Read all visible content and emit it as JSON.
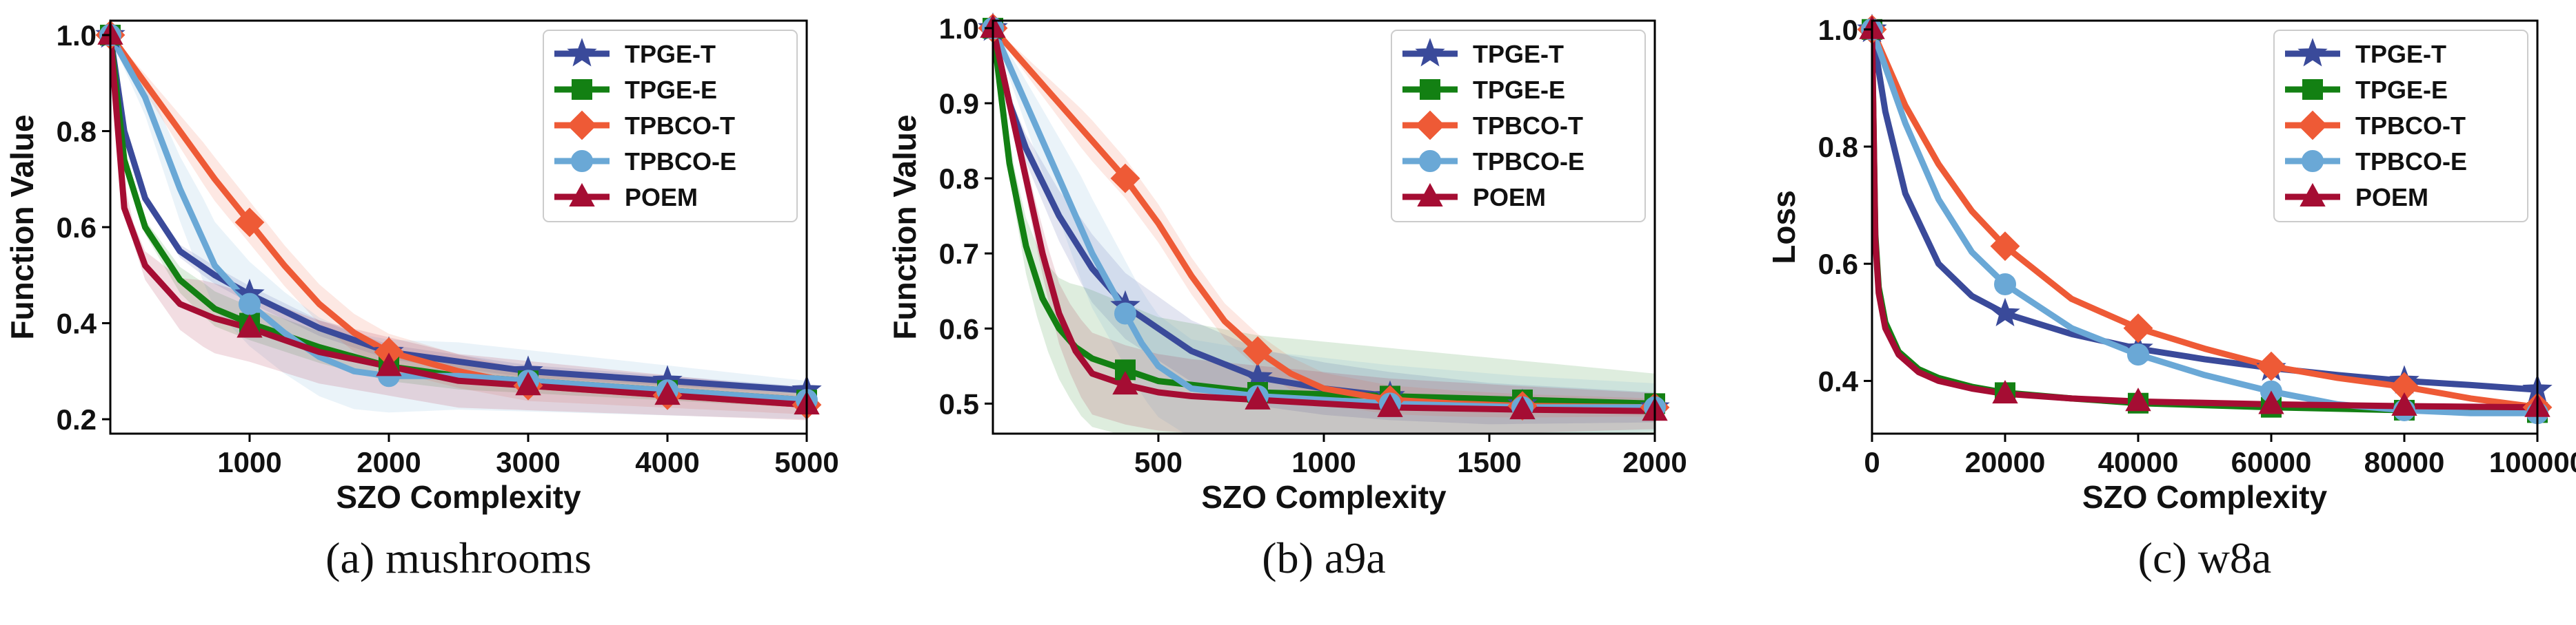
{
  "colors": {
    "TPGE-T": "#3a4a9a",
    "TPGE-E": "#138013",
    "TPBCO-T": "#ee5a36",
    "TPBCO-E": "#6aa8d6",
    "POEM": "#a50d33"
  },
  "markers": {
    "TPGE-T": "star",
    "TPGE-E": "square",
    "TPBCO-T": "diamond",
    "TPBCO-E": "circle",
    "POEM": "triangle"
  },
  "chart_data": [
    {
      "type": "line",
      "caption": "(a) mushrooms",
      "xlabel": "SZO Complexity",
      "ylabel": "Function Value",
      "xlim": [
        0,
        5000
      ],
      "ylim": [
        0.17,
        1.03
      ],
      "xticks": [
        1000,
        2000,
        3000,
        4000,
        5000
      ],
      "xtick_labels": [
        "1000",
        "2000",
        "3000",
        "4000",
        "5000"
      ],
      "yticks": [
        0.2,
        0.4,
        0.6,
        0.8,
        1.0
      ],
      "ytick_labels": [
        "0.2",
        "0.4",
        "0.6",
        "0.8",
        "1.0"
      ],
      "legend": [
        "TPGE-T",
        "TPGE-E",
        "TPBCO-T",
        "TPBCO-E",
        "POEM"
      ],
      "marker_x": [
        0,
        1000,
        2000,
        3000,
        4000,
        5000
      ],
      "series": [
        {
          "name": "TPGE-T",
          "x": [
            0,
            100,
            250,
            500,
            750,
            1000,
            1500,
            2000,
            2500,
            3000,
            3500,
            4000,
            4500,
            5000
          ],
          "y": [
            1.0,
            0.8,
            0.66,
            0.55,
            0.5,
            0.46,
            0.39,
            0.34,
            0.32,
            0.3,
            0.29,
            0.28,
            0.27,
            0.26
          ],
          "band": 0.02
        },
        {
          "name": "TPGE-E",
          "x": [
            0,
            100,
            250,
            500,
            750,
            1000,
            1500,
            2000,
            2500,
            3000,
            3500,
            4000,
            4500,
            5000
          ],
          "y": [
            1.0,
            0.74,
            0.6,
            0.49,
            0.43,
            0.4,
            0.35,
            0.31,
            0.29,
            0.28,
            0.27,
            0.26,
            0.25,
            0.24
          ],
          "band": 0.04
        },
        {
          "name": "TPBCO-T",
          "x": [
            0,
            250,
            500,
            750,
            1000,
            1250,
            1500,
            1750,
            2000,
            2500,
            3000,
            3500,
            4000,
            4500,
            5000
          ],
          "y": [
            1.0,
            0.9,
            0.8,
            0.7,
            0.61,
            0.52,
            0.44,
            0.38,
            0.34,
            0.3,
            0.27,
            0.26,
            0.25,
            0.24,
            0.23
          ],
          "band": 0.05
        },
        {
          "name": "TPBCO-E",
          "x": [
            0,
            250,
            500,
            750,
            1000,
            1250,
            1500,
            1750,
            2000,
            2500,
            3000,
            3500,
            4000,
            4500,
            5000
          ],
          "y": [
            1.0,
            0.87,
            0.68,
            0.52,
            0.44,
            0.38,
            0.33,
            0.3,
            0.29,
            0.29,
            0.28,
            0.27,
            0.26,
            0.25,
            0.24
          ],
          "band": 0.1
        },
        {
          "name": "POEM",
          "x": [
            0,
            100,
            250,
            500,
            750,
            1000,
            1500,
            2000,
            2500,
            3000,
            3500,
            4000,
            4500,
            5000
          ],
          "y": [
            1.0,
            0.64,
            0.52,
            0.44,
            0.41,
            0.39,
            0.34,
            0.31,
            0.28,
            0.27,
            0.26,
            0.25,
            0.24,
            0.23
          ],
          "band": 0.08
        }
      ]
    },
    {
      "type": "line",
      "caption": "(b) a9a",
      "xlabel": "SZO Complexity",
      "ylabel": "Function Value",
      "xlim": [
        0,
        2000
      ],
      "ylim": [
        0.46,
        1.01
      ],
      "xticks": [
        500,
        1000,
        1500,
        2000
      ],
      "xtick_labels": [
        "500",
        "1000",
        "1500",
        "2000"
      ],
      "yticks": [
        0.5,
        0.6,
        0.7,
        0.8,
        0.9,
        1.0
      ],
      "ytick_labels": [
        "0.5",
        "0.6",
        "0.7",
        "0.8",
        "0.9",
        "1.0"
      ],
      "legend": [
        "TPGE-T",
        "TPGE-E",
        "TPBCO-T",
        "TPBCO-E",
        "POEM"
      ],
      "marker_x": [
        0,
        400,
        800,
        1200,
        1600,
        2000
      ],
      "series": [
        {
          "name": "TPGE-T",
          "x": [
            0,
            50,
            100,
            200,
            300,
            400,
            500,
            600,
            800,
            1000,
            1200,
            1500,
            2000
          ],
          "y": [
            1.0,
            0.9,
            0.84,
            0.75,
            0.68,
            0.63,
            0.6,
            0.57,
            0.535,
            0.52,
            0.51,
            0.5,
            0.495
          ],
          "band": 0.05
        },
        {
          "name": "TPGE-E",
          "x": [
            0,
            50,
            100,
            150,
            200,
            250,
            300,
            400,
            500,
            800,
            1200,
            1600,
            2000
          ],
          "y": [
            1.0,
            0.82,
            0.71,
            0.64,
            0.6,
            0.575,
            0.56,
            0.545,
            0.53,
            0.515,
            0.51,
            0.505,
            0.5
          ],
          "band": 0.1
        },
        {
          "name": "TPBCO-T",
          "x": [
            0,
            100,
            200,
            300,
            400,
            500,
            600,
            700,
            800,
            900,
            1000,
            1200,
            1400,
            1600,
            2000
          ],
          "y": [
            1.0,
            0.95,
            0.9,
            0.85,
            0.8,
            0.74,
            0.67,
            0.61,
            0.57,
            0.54,
            0.52,
            0.505,
            0.5,
            0.497,
            0.495
          ],
          "band": 0.03
        },
        {
          "name": "TPBCO-E",
          "x": [
            0,
            100,
            200,
            300,
            400,
            450,
            500,
            600,
            800,
            1200,
            1600,
            2000
          ],
          "y": [
            1.0,
            0.9,
            0.8,
            0.7,
            0.62,
            0.58,
            0.55,
            0.52,
            0.51,
            0.5,
            0.495,
            0.495
          ],
          "band": 0.08
        },
        {
          "name": "POEM",
          "x": [
            0,
            50,
            100,
            150,
            200,
            250,
            300,
            400,
            500,
            600,
            800,
            1200,
            1600,
            2000
          ],
          "y": [
            1.0,
            0.9,
            0.8,
            0.7,
            0.62,
            0.57,
            0.54,
            0.525,
            0.515,
            0.51,
            0.505,
            0.495,
            0.492,
            0.49
          ],
          "band": 0.06
        }
      ]
    },
    {
      "type": "line",
      "caption": "(c) w8a",
      "xlabel": "SZO Complexity",
      "ylabel": "Loss",
      "xlim": [
        0,
        100000
      ],
      "ylim": [
        0.31,
        1.015
      ],
      "xticks": [
        0,
        20000,
        40000,
        60000,
        80000,
        100000
      ],
      "xtick_labels": [
        "0",
        "20000",
        "40000",
        "60000",
        "80000",
        "100000"
      ],
      "yticks": [
        0.4,
        0.6,
        0.8,
        1.0
      ],
      "ytick_labels": [
        "0.4",
        "0.6",
        "0.8",
        "1.0"
      ],
      "legend": [
        "TPGE-T",
        "TPGE-E",
        "TPBCO-T",
        "TPBCO-E",
        "POEM"
      ],
      "marker_x": [
        0,
        20000,
        40000,
        60000,
        80000,
        100000
      ],
      "series": [
        {
          "name": "TPGE-T",
          "x": [
            0,
            2000,
            5000,
            10000,
            15000,
            20000,
            30000,
            40000,
            50000,
            60000,
            70000,
            80000,
            90000,
            100000
          ],
          "y": [
            1.0,
            0.86,
            0.72,
            0.6,
            0.545,
            0.515,
            0.48,
            0.455,
            0.437,
            0.422,
            0.41,
            0.4,
            0.393,
            0.385
          ],
          "band": 0
        },
        {
          "name": "TPGE-E",
          "x": [
            0,
            500,
            1000,
            2000,
            4000,
            7000,
            10000,
            15000,
            20000,
            30000,
            40000,
            60000,
            80000,
            100000
          ],
          "y": [
            1.0,
            0.65,
            0.56,
            0.5,
            0.45,
            0.42,
            0.405,
            0.39,
            0.38,
            0.37,
            0.362,
            0.355,
            0.35,
            0.346
          ],
          "band": 0
        },
        {
          "name": "TPBCO-T",
          "x": [
            0,
            5000,
            10000,
            15000,
            20000,
            30000,
            40000,
            50000,
            60000,
            70000,
            80000,
            90000,
            100000
          ],
          "y": [
            1.0,
            0.87,
            0.77,
            0.69,
            0.63,
            0.54,
            0.49,
            0.455,
            0.425,
            0.405,
            0.39,
            0.37,
            0.355
          ],
          "band": 0
        },
        {
          "name": "TPBCO-E",
          "x": [
            0,
            5000,
            10000,
            15000,
            20000,
            30000,
            40000,
            50000,
            60000,
            70000,
            80000,
            90000,
            100000
          ],
          "y": [
            1.0,
            0.84,
            0.71,
            0.62,
            0.565,
            0.49,
            0.445,
            0.41,
            0.382,
            0.36,
            0.35,
            0.345,
            0.345
          ],
          "band": 0
        },
        {
          "name": "POEM",
          "x": [
            0,
            500,
            1000,
            2000,
            4000,
            7000,
            10000,
            15000,
            20000,
            30000,
            40000,
            60000,
            80000,
            100000
          ],
          "y": [
            1.0,
            0.64,
            0.55,
            0.49,
            0.445,
            0.415,
            0.4,
            0.387,
            0.378,
            0.37,
            0.365,
            0.36,
            0.357,
            0.355
          ],
          "band": 0
        }
      ]
    }
  ]
}
